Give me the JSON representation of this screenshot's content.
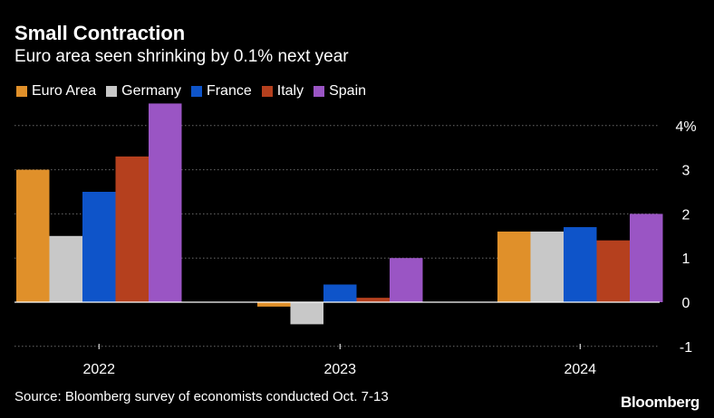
{
  "header": {
    "title": "Small Contraction",
    "subtitle": "Euro area seen shrinking by 0.1% next year"
  },
  "footer": {
    "source": "Source: Bloomberg survey of economists conducted Oct. 7-13",
    "brand": "Bloomberg"
  },
  "chart_data": {
    "type": "bar",
    "title": "Small Contraction",
    "subtitle": "Euro area seen shrinking by 0.1% next year",
    "xlabel": "",
    "ylabel": "",
    "unit": "%",
    "ylim": [
      -1,
      4.5
    ],
    "yticks": [
      {
        "value": 4,
        "label": "4%"
      },
      {
        "value": 3,
        "label": "3"
      },
      {
        "value": 2,
        "label": "2"
      },
      {
        "value": 1,
        "label": "1"
      },
      {
        "value": 0,
        "label": "0"
      },
      {
        "value": -1,
        "label": "-1"
      }
    ],
    "grid": true,
    "legend_position": "top-left",
    "categories": [
      "2022",
      "2023",
      "2024"
    ],
    "series": [
      {
        "name": "Euro Area",
        "color": "#E0902A",
        "values": [
          3.0,
          -0.1,
          1.6
        ]
      },
      {
        "name": "Germany",
        "color": "#C8C8C8",
        "values": [
          1.5,
          -0.5,
          1.6
        ]
      },
      {
        "name": "France",
        "color": "#0E54C9",
        "values": [
          2.5,
          0.4,
          1.7
        ]
      },
      {
        "name": "Italy",
        "color": "#B5401E",
        "values": [
          3.3,
          0.1,
          1.4
        ]
      },
      {
        "name": "Spain",
        "color": "#9A55C4",
        "values": [
          4.5,
          1.0,
          2.0
        ]
      }
    ]
  }
}
